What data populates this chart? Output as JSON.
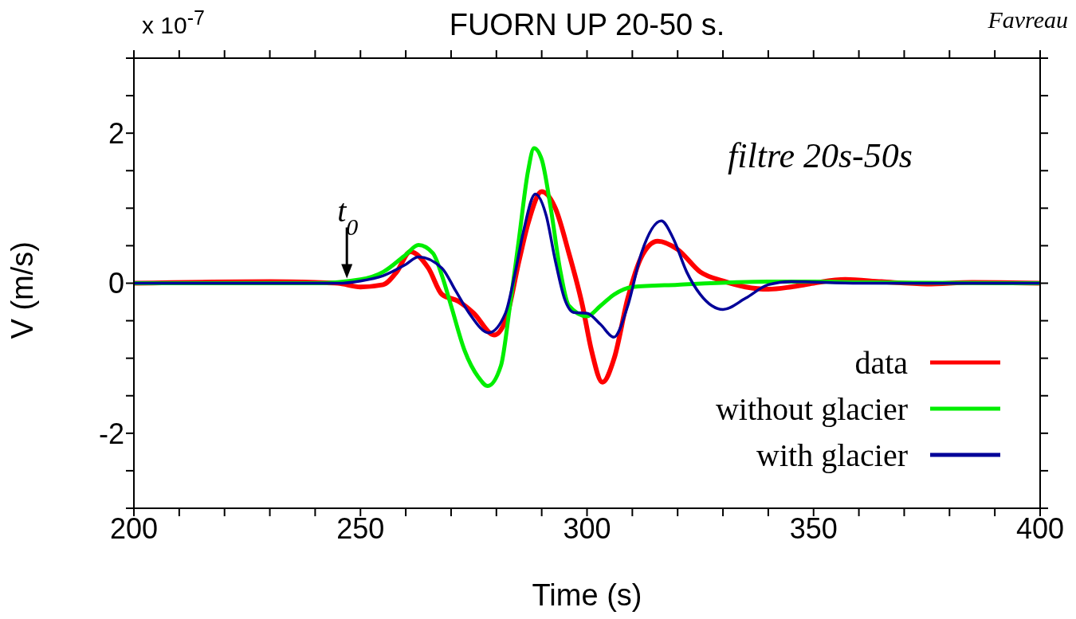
{
  "chart_data": {
    "type": "line",
    "title": "FUORN UP 20-50 s.",
    "xlabel": "Time (s)",
    "ylabel": "V (m/s)",
    "xlim": [
      200,
      400
    ],
    "ylim": [
      -3,
      3
    ],
    "xticks": [
      200,
      {
        "value": 210,
        "label": null
      },
      {
        "value": 220,
        "label": null
      },
      {
        "value": 230,
        "label": null
      },
      {
        "value": 240,
        "label": null
      },
      250,
      {
        "value": 260,
        "label": null
      },
      {
        "value": 270,
        "label": null
      },
      {
        "value": 280,
        "label": null
      },
      {
        "value": 290,
        "label": null
      },
      300,
      {
        "value": 310,
        "label": null
      },
      {
        "value": 320,
        "label": null
      },
      {
        "value": 330,
        "label": null
      },
      {
        "value": 340,
        "label": null
      },
      350,
      {
        "value": 360,
        "label": null
      },
      {
        "value": 370,
        "label": null
      },
      {
        "value": 380,
        "label": null
      },
      {
        "value": 390,
        "label": null
      },
      400
    ],
    "yticks": [
      {
        "value": -3,
        "label": null
      },
      {
        "value": -2.5,
        "label": null
      },
      -2,
      {
        "value": -1.5,
        "label": null
      },
      {
        "value": -1,
        "label": null
      },
      {
        "value": -0.5,
        "label": null
      },
      0,
      {
        "value": 0.5,
        "label": null
      },
      {
        "value": 1,
        "label": null
      },
      {
        "value": 1.5,
        "label": null
      },
      2,
      {
        "value": 2.5,
        "label": null
      },
      {
        "value": 3,
        "label": null
      }
    ],
    "legend": "bottom right",
    "marker": "none",
    "line_style": "solid",
    "annotations": [
      "x 10$^{-7}$",
      "filtre 20s-50s",
      "Favreau",
      {
        "text": "t$_{0}$",
        "x": 247,
        "y": 0
      }
    ],
    "series": [
      {
        "name": "data",
        "color": "#ff0000",
        "x": [
          200,
          230,
          240,
          245,
          250,
          255,
          258,
          261,
          265,
          268,
          271.6,
          275,
          279.5,
          282,
          285,
          287,
          290,
          293,
          296,
          299,
          301,
          303.4,
          306,
          309,
          312,
          315.6,
          320,
          325,
          330,
          335,
          340,
          345,
          350,
          357,
          365,
          375,
          385,
          400
        ],
        "values": [
          0,
          0.02,
          0.01,
          0,
          -0.05,
          -0.02,
          0.15,
          0.42,
          0.2,
          -0.15,
          -0.24,
          -0.4,
          -0.69,
          -0.5,
          0.3,
          0.8,
          1.22,
          1.0,
          0.4,
          -0.3,
          -0.9,
          -1.32,
          -1.0,
          -0.2,
          0.35,
          0.56,
          0.45,
          0.15,
          0.03,
          -0.05,
          -0.08,
          -0.05,
          0,
          0.05,
          0.02,
          -0.01,
          0.01,
          0
        ]
      },
      {
        "name": "without glacier",
        "color": "#00ee00",
        "x": [
          200,
          240,
          250,
          255,
          260,
          262.8,
          266,
          268,
          270,
          273,
          276,
          278.1,
          281,
          283,
          285,
          287,
          288.3,
          290,
          292,
          294,
          296,
          300,
          303,
          306,
          310,
          320,
          340,
          350,
          360,
          400
        ],
        "values": [
          0,
          0,
          0.05,
          0.15,
          0.38,
          0.51,
          0.4,
          0.1,
          -0.3,
          -0.9,
          -1.25,
          -1.37,
          -1.1,
          -0.3,
          0.6,
          1.5,
          1.8,
          1.65,
          1.0,
          0.2,
          -0.3,
          -0.44,
          -0.3,
          -0.15,
          -0.05,
          -0.02,
          0.02,
          0.02,
          0.01,
          0
        ]
      },
      {
        "name": "with glacier",
        "color": "#000099",
        "x": [
          200,
          245,
          250,
          255,
          260,
          262.8,
          268,
          271,
          274,
          278.3,
          282,
          284,
          286,
          288.6,
          291,
          293,
          295,
          297.1,
          300,
          303,
          305.9,
          309,
          312,
          316.4,
          319,
          322,
          325,
          330,
          335,
          340,
          345,
          360,
          400
        ],
        "values": [
          0,
          0,
          0.03,
          0.1,
          0.25,
          0.35,
          0.2,
          -0.1,
          -0.4,
          -0.66,
          -0.4,
          0.1,
          0.7,
          1.19,
          0.9,
          0.3,
          -0.2,
          -0.39,
          -0.4,
          -0.55,
          -0.72,
          -0.3,
          0.4,
          0.83,
          0.6,
          0.15,
          -0.15,
          -0.35,
          -0.2,
          -0.02,
          0.02,
          0,
          0
        ]
      }
    ]
  }
}
